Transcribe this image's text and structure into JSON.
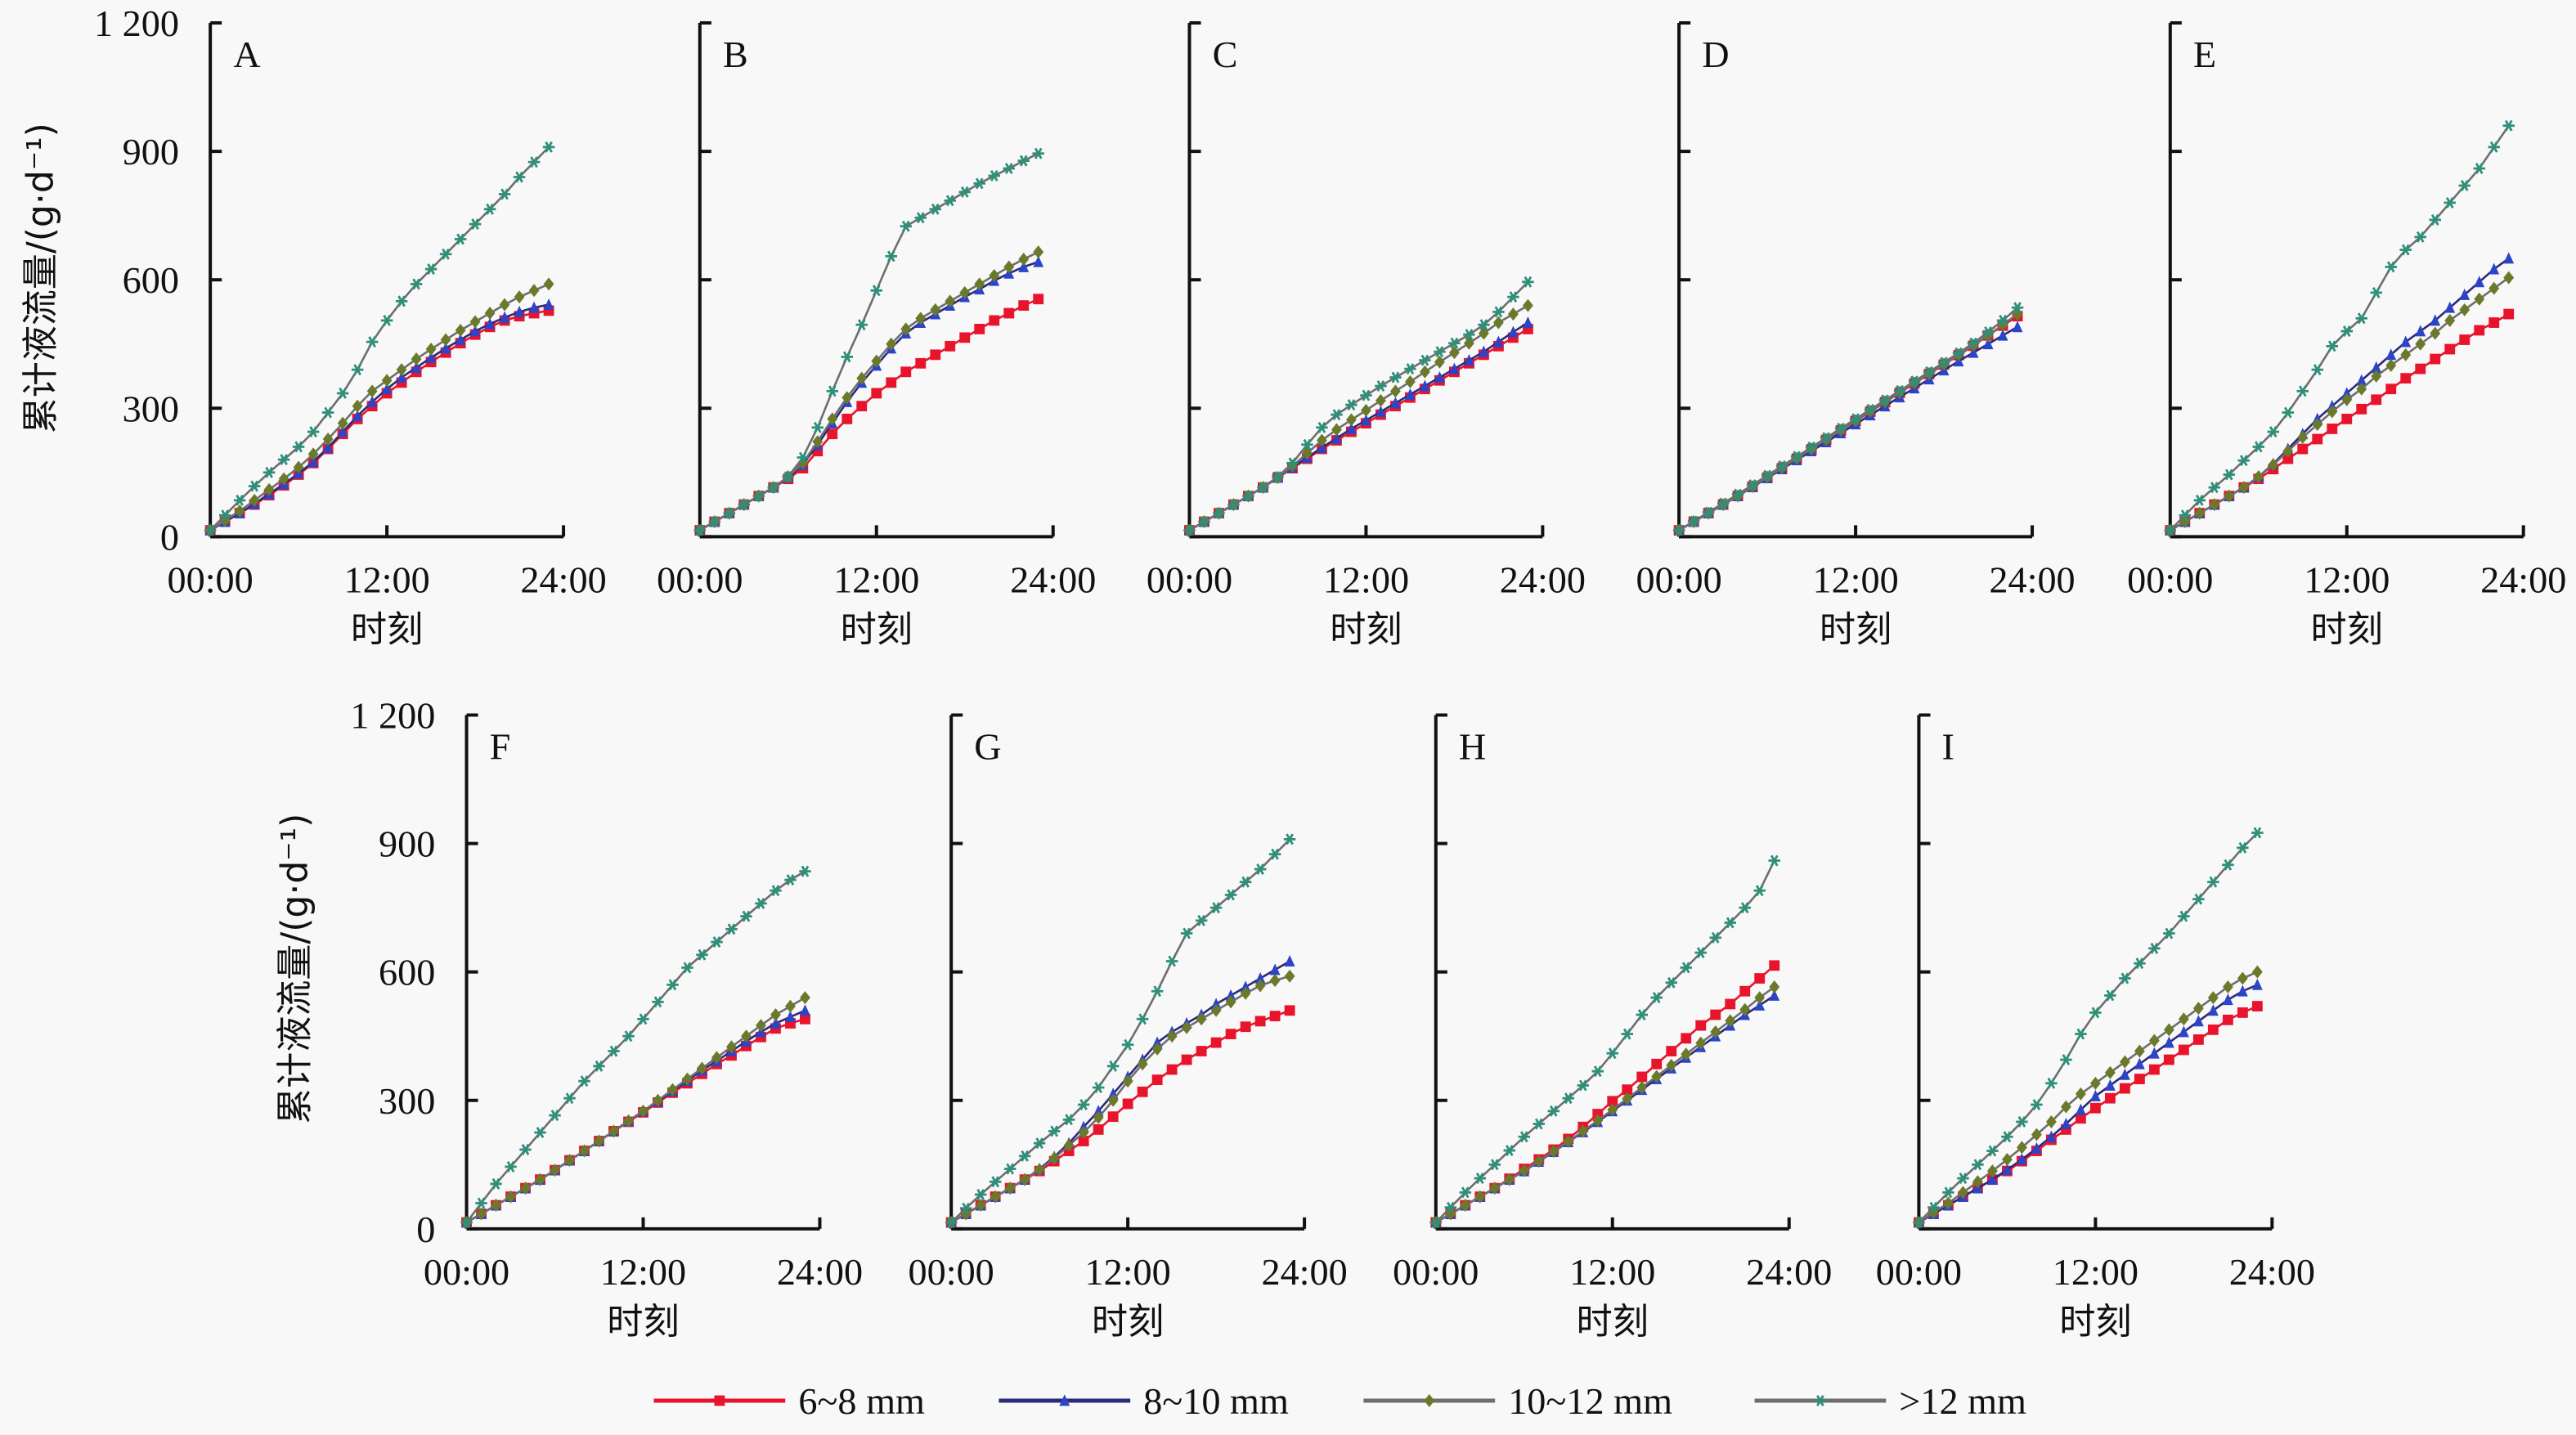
{
  "chart_data": {
    "type": "line",
    "title": "",
    "xlabel": "时刻",
    "ylabel": "累计液流量/(g·d⁻¹)",
    "x_unit": "hour",
    "xlim": [
      0,
      24
    ],
    "ylim": [
      0,
      1200
    ],
    "xticks": [
      0,
      12,
      24
    ],
    "xtick_labels": [
      "00:00",
      "12:00",
      "24:00"
    ],
    "yticks": [
      0,
      300,
      600,
      900,
      1200
    ],
    "ytick_labels": [
      "0",
      "300",
      "600",
      "900",
      "1 200"
    ],
    "grid": false,
    "legend_position": "bottom-center",
    "x": [
      0,
      1,
      2,
      3,
      4,
      5,
      6,
      7,
      8,
      9,
      10,
      11,
      12,
      13,
      14,
      15,
      16,
      17,
      18,
      19,
      20,
      21,
      22,
      23
    ],
    "series_defs": [
      {
        "key": "s1",
        "name": "6~8 mm",
        "line_color": "#e8142c",
        "marker_color": "#e8142c",
        "marker": "square"
      },
      {
        "key": "s2",
        "name": "8~10 mm",
        "line_color": "#2a2a7a",
        "marker_color": "#2c44c8",
        "marker": "triangle"
      },
      {
        "key": "s3",
        "name": "10~12 mm",
        "line_color": "#6e6e6e",
        "marker_color": "#6b7a2a",
        "marker": "diamond"
      },
      {
        "key": "s4",
        "name": ">12 mm",
        "line_color": "#6e6e6e",
        "marker_color": "#2f8f7a",
        "marker": "star"
      }
    ],
    "panels": [
      {
        "label": "A",
        "s1": [
          15,
          35,
          55,
          75,
          97,
          120,
          145,
          172,
          205,
          240,
          275,
          305,
          335,
          360,
          385,
          408,
          430,
          452,
          472,
          490,
          505,
          515,
          522,
          528
        ],
        "s2": [
          15,
          35,
          55,
          77,
          100,
          123,
          148,
          175,
          208,
          245,
          282,
          315,
          345,
          372,
          395,
          418,
          440,
          460,
          480,
          497,
          512,
          525,
          535,
          542
        ],
        "s3": [
          15,
          38,
          60,
          85,
          110,
          135,
          162,
          193,
          228,
          265,
          305,
          340,
          365,
          390,
          415,
          438,
          460,
          482,
          502,
          522,
          542,
          560,
          575,
          590
        ],
        "s4": [
          15,
          50,
          85,
          118,
          150,
          180,
          210,
          245,
          290,
          335,
          390,
          455,
          505,
          550,
          590,
          625,
          660,
          695,
          730,
          765,
          800,
          840,
          875,
          910
        ]
      },
      {
        "label": "B",
        "s1": [
          15,
          35,
          55,
          75,
          95,
          115,
          135,
          160,
          200,
          240,
          275,
          305,
          335,
          360,
          385,
          405,
          425,
          445,
          465,
          485,
          505,
          522,
          540,
          555
        ],
        "s2": [
          15,
          35,
          55,
          75,
          95,
          115,
          138,
          168,
          215,
          265,
          315,
          360,
          400,
          440,
          475,
          500,
          520,
          540,
          560,
          578,
          598,
          615,
          630,
          642
        ],
        "s3": [
          15,
          35,
          55,
          75,
          95,
          115,
          140,
          172,
          222,
          275,
          325,
          370,
          410,
          450,
          485,
          510,
          530,
          550,
          570,
          590,
          610,
          630,
          648,
          665
        ],
        "s4": [
          15,
          35,
          55,
          75,
          95,
          115,
          140,
          185,
          255,
          340,
          420,
          495,
          575,
          655,
          725,
          745,
          765,
          785,
          805,
          825,
          843,
          860,
          878,
          895
        ]
      },
      {
        "label": "C",
        "s1": [
          15,
          35,
          55,
          75,
          95,
          115,
          138,
          160,
          182,
          205,
          225,
          245,
          265,
          285,
          305,
          325,
          345,
          365,
          385,
          405,
          425,
          445,
          465,
          485
        ],
        "s2": [
          15,
          35,
          55,
          75,
          95,
          115,
          138,
          162,
          185,
          208,
          230,
          252,
          272,
          292,
          312,
          332,
          352,
          372,
          392,
          412,
          432,
          455,
          478,
          500
        ],
        "s3": [
          15,
          35,
          55,
          75,
          95,
          115,
          138,
          165,
          195,
          225,
          250,
          273,
          295,
          318,
          340,
          362,
          385,
          408,
          430,
          452,
          475,
          500,
          520,
          540
        ],
        "s4": [
          15,
          35,
          55,
          75,
          95,
          115,
          140,
          172,
          215,
          255,
          285,
          308,
          330,
          352,
          372,
          392,
          412,
          432,
          452,
          472,
          495,
          525,
          560,
          595
        ]
      },
      {
        "label": "D",
        "s1": [
          15,
          35,
          55,
          75,
          95,
          117,
          138,
          160,
          182,
          204,
          226,
          248,
          270,
          292,
          314,
          336,
          358,
          380,
          402,
          424,
          446,
          470,
          493,
          515
        ],
        "s2": [
          15,
          35,
          55,
          75,
          95,
          116,
          137,
          158,
          179,
          200,
          221,
          242,
          263,
          284,
          305,
          326,
          347,
          368,
          389,
          410,
          430,
          450,
          470,
          490
        ],
        "s3": [
          15,
          35,
          55,
          75,
          95,
          117,
          139,
          161,
          183,
          205,
          227,
          249,
          271,
          293,
          315,
          337,
          359,
          381,
          403,
          425,
          447,
          470,
          495,
          520
        ],
        "s4": [
          15,
          36,
          57,
          78,
          99,
          121,
          143,
          165,
          187,
          209,
          231,
          253,
          275,
          297,
          319,
          341,
          363,
          385,
          407,
          429,
          452,
          478,
          505,
          535
        ]
      },
      {
        "label": "E",
        "s1": [
          15,
          35,
          55,
          75,
          95,
          115,
          135,
          158,
          182,
          205,
          228,
          252,
          275,
          298,
          320,
          345,
          370,
          392,
          415,
          438,
          460,
          482,
          500,
          520
        ],
        "s2": [
          15,
          35,
          55,
          75,
          95,
          115,
          140,
          170,
          205,
          240,
          275,
          305,
          335,
          365,
          395,
          425,
          455,
          480,
          505,
          535,
          565,
          595,
          625,
          650
        ],
        "s3": [
          15,
          35,
          55,
          75,
          95,
          115,
          140,
          168,
          200,
          232,
          262,
          292,
          320,
          345,
          375,
          400,
          425,
          450,
          475,
          505,
          530,
          555,
          580,
          605
        ],
        "s4": [
          15,
          50,
          85,
          115,
          145,
          178,
          210,
          245,
          290,
          340,
          390,
          445,
          480,
          510,
          570,
          630,
          670,
          700,
          740,
          780,
          820,
          860,
          910,
          960
        ]
      },
      {
        "label": "F",
        "s1": [
          15,
          35,
          55,
          75,
          95,
          115,
          137,
          160,
          182,
          205,
          228,
          250,
          272,
          295,
          318,
          340,
          362,
          385,
          405,
          427,
          448,
          468,
          480,
          490
        ],
        "s2": [
          15,
          35,
          55,
          75,
          95,
          115,
          137,
          160,
          182,
          205,
          228,
          252,
          275,
          298,
          322,
          346,
          370,
          392,
          415,
          438,
          460,
          480,
          495,
          510
        ],
        "s3": [
          15,
          35,
          55,
          75,
          95,
          115,
          137,
          160,
          182,
          205,
          228,
          252,
          275,
          300,
          325,
          350,
          375,
          400,
          425,
          450,
          475,
          500,
          520,
          540
        ],
        "s4": [
          15,
          60,
          105,
          145,
          185,
          225,
          265,
          305,
          345,
          380,
          415,
          450,
          490,
          530,
          570,
          610,
          640,
          670,
          700,
          730,
          760,
          790,
          815,
          835
        ]
      },
      {
        "label": "G",
        "s1": [
          15,
          35,
          55,
          75,
          95,
          115,
          135,
          158,
          182,
          205,
          232,
          262,
          292,
          320,
          348,
          372,
          395,
          415,
          435,
          455,
          472,
          485,
          497,
          510
        ],
        "s2": [
          15,
          35,
          55,
          75,
          95,
          115,
          140,
          168,
          200,
          238,
          275,
          315,
          355,
          395,
          435,
          460,
          480,
          500,
          525,
          545,
          565,
          585,
          605,
          625
        ],
        "s3": [
          15,
          35,
          55,
          75,
          95,
          115,
          138,
          165,
          195,
          225,
          260,
          300,
          345,
          385,
          420,
          450,
          470,
          490,
          510,
          530,
          550,
          568,
          580,
          590
        ],
        "s4": [
          15,
          48,
          80,
          110,
          140,
          170,
          200,
          228,
          255,
          290,
          330,
          380,
          430,
          490,
          555,
          625,
          690,
          720,
          750,
          780,
          810,
          840,
          875,
          910
        ]
      },
      {
        "label": "H",
        "s1": [
          15,
          35,
          55,
          75,
          95,
          117,
          140,
          162,
          185,
          210,
          238,
          268,
          298,
          325,
          355,
          385,
          415,
          445,
          475,
          500,
          525,
          555,
          585,
          615
        ],
        "s2": [
          15,
          35,
          55,
          75,
          95,
          115,
          135,
          157,
          180,
          203,
          226,
          250,
          275,
          300,
          325,
          350,
          375,
          400,
          425,
          450,
          475,
          500,
          522,
          545
        ],
        "s3": [
          15,
          35,
          55,
          75,
          95,
          115,
          136,
          158,
          181,
          204,
          228,
          253,
          278,
          304,
          330,
          356,
          382,
          408,
          434,
          460,
          486,
          512,
          540,
          565
        ],
        "s4": [
          15,
          50,
          85,
          118,
          150,
          183,
          215,
          245,
          275,
          305,
          335,
          368,
          410,
          455,
          500,
          540,
          575,
          610,
          645,
          680,
          715,
          750,
          790,
          860
        ]
      },
      {
        "label": "I",
        "s1": [
          15,
          35,
          55,
          75,
          95,
          115,
          135,
          158,
          182,
          208,
          232,
          258,
          282,
          305,
          328,
          350,
          372,
          395,
          418,
          442,
          465,
          488,
          505,
          520
        ],
        "s2": [
          15,
          35,
          55,
          75,
          95,
          115,
          138,
          162,
          188,
          215,
          245,
          278,
          310,
          335,
          360,
          385,
          410,
          435,
          460,
          485,
          510,
          535,
          555,
          570
        ],
        "s3": [
          15,
          38,
          60,
          85,
          110,
          135,
          162,
          190,
          220,
          250,
          285,
          315,
          340,
          365,
          390,
          415,
          440,
          465,
          490,
          515,
          540,
          565,
          585,
          600
        ],
        "s4": [
          15,
          50,
          85,
          118,
          150,
          182,
          215,
          250,
          290,
          340,
          395,
          455,
          505,
          545,
          585,
          620,
          655,
          690,
          730,
          770,
          810,
          850,
          890,
          925
        ]
      }
    ]
  },
  "legend": {
    "items": [
      "6~8 mm",
      "8~10 mm",
      "10~12 mm",
      ">12 mm"
    ]
  }
}
